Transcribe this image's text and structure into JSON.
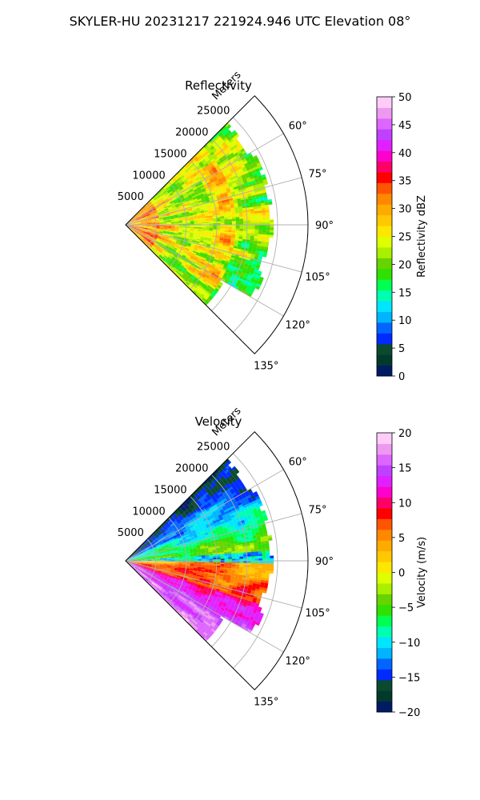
{
  "suptitle": "SKYLER-HU  20231217  221924.946 UTC Elevation 08°",
  "chart_data": [
    {
      "type": "heatmap",
      "projection": "polar-sector",
      "title": "Reflectivity",
      "radial_label": "Meters",
      "radial_ticks": [
        "5000",
        "10000",
        "15000",
        "20000",
        "25000"
      ],
      "radial_tick_values": [
        5000,
        10000,
        15000,
        20000,
        25000
      ],
      "r_max": 30000,
      "data_extent_m": 26000,
      "azimuth_range_deg": [
        45,
        135
      ],
      "azimuth_ticks": [
        "60°",
        "75°",
        "90°",
        "105°",
        "120°",
        "135°"
      ],
      "azimuth_tick_values": [
        60,
        75,
        90,
        105,
        120,
        135
      ],
      "grid": true,
      "field": "reflectivity",
      "colorbar": {
        "label": "Reflectivity dBZ",
        "range": [
          0,
          50
        ],
        "ticks": [
          "0",
          "5",
          "10",
          "15",
          "20",
          "25",
          "30",
          "35",
          "40",
          "45",
          "50"
        ],
        "tick_values": [
          0,
          5,
          10,
          15,
          20,
          25,
          30,
          35,
          40,
          45,
          50
        ],
        "colors": [
          "#001a66",
          "#003a2a",
          "#0a4a30",
          "#002aff",
          "#0066ff",
          "#00b4ff",
          "#00e6ff",
          "#00ffb0",
          "#00ff50",
          "#30e000",
          "#66d400",
          "#aaee00",
          "#ddff00",
          "#ffe600",
          "#ffc800",
          "#ffaa00",
          "#ff8800",
          "#ff5500",
          "#ff0000",
          "#ff0066",
          "#ff00cc",
          "#e020ff",
          "#c040ff",
          "#dd66ff",
          "#ee99f0",
          "#ffccf8"
        ]
      }
    },
    {
      "type": "heatmap",
      "projection": "polar-sector",
      "title": "Velocity",
      "radial_label": "Meters",
      "radial_ticks": [
        "5000",
        "10000",
        "15000",
        "20000",
        "25000"
      ],
      "radial_tick_values": [
        5000,
        10000,
        15000,
        20000,
        25000
      ],
      "r_max": 30000,
      "data_extent_m": 26000,
      "azimuth_range_deg": [
        45,
        135
      ],
      "azimuth_ticks": [
        "60°",
        "75°",
        "90°",
        "105°",
        "120°",
        "135°"
      ],
      "azimuth_tick_values": [
        60,
        75,
        90,
        105,
        120,
        135
      ],
      "grid": true,
      "field": "velocity",
      "colorbar": {
        "label": "Velocity (m/s)",
        "range": [
          -20,
          20
        ],
        "ticks": [
          "−20",
          "−15",
          "−10",
          "−5",
          "0",
          "5",
          "10",
          "15",
          "20"
        ],
        "tick_values": [
          -20,
          -15,
          -10,
          -5,
          0,
          5,
          10,
          15,
          20
        ],
        "colors": [
          "#001a66",
          "#003a2a",
          "#0a4a30",
          "#002aff",
          "#0066ff",
          "#00b4ff",
          "#00e6ff",
          "#00ffb0",
          "#00ff50",
          "#30e000",
          "#66d400",
          "#aaee00",
          "#ddff00",
          "#ffe600",
          "#ffc800",
          "#ffaa00",
          "#ff8800",
          "#ff5500",
          "#ff0000",
          "#ff0066",
          "#ff00cc",
          "#e020ff",
          "#c040ff",
          "#dd66ff",
          "#ee99f0",
          "#ffccf8"
        ]
      }
    }
  ]
}
